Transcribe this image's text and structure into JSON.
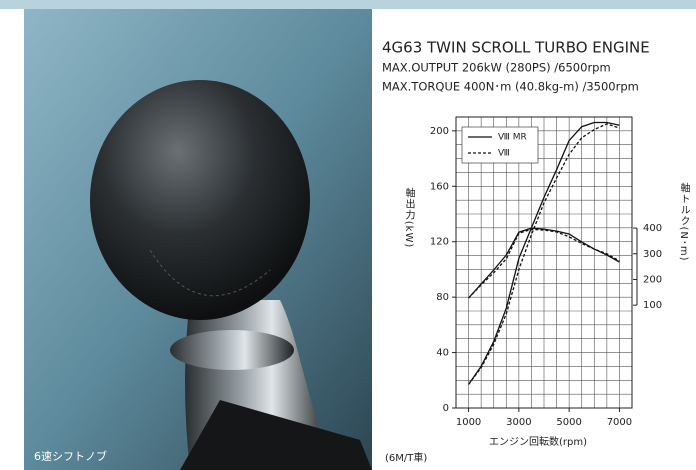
{
  "caption": "6速シフトノブ",
  "chart_data": {
    "type": "line",
    "title": "4G63 TWIN SCROLL TURBO ENGINE",
    "subtitle": [
      "MAX.OUTPUT 206kW (280PS) /6500rpm",
      "MAX.TORQUE 400N･m (40.8kg-m) /3500rpm"
    ],
    "x_label": "エンジン回転数(rpm)",
    "y_label": "軸出力(kW)",
    "y2_label": "軸トルク(N･m)",
    "note": "(6M/T車)",
    "x": [
      1000,
      1500,
      2000,
      2500,
      3000,
      3500,
      4000,
      4500,
      5000,
      5500,
      6000,
      6500,
      7000
    ],
    "series": [
      {
        "name": "Ⅷ MR",
        "color": "#111111",
        "dash": false,
        "values": [
          17,
          30,
          48,
          72,
          108,
          130,
          152,
          172,
          193,
          203,
          206,
          206,
          204
        ]
      },
      {
        "name": "Ⅷ",
        "color": "#111111",
        "dash": true,
        "values": [
          17,
          29,
          46,
          68,
          100,
          125,
          148,
          166,
          183,
          195,
          201,
          205,
          202
        ]
      },
      {
        "color": "#111111",
        "dash": false,
        "axis": "y2",
        "values": [
          128,
          182,
          237,
          295,
          384,
          400,
          396,
          388,
          377,
          346,
          318,
          295,
          268
        ]
      },
      {
        "color": "#111111",
        "dash": true,
        "axis": "y2",
        "values": [
          128,
          179,
          226,
          280,
          380,
          395,
          392,
          385,
          366,
          340,
          318,
          300,
          272
        ]
      }
    ],
    "xlim": [
      500,
      7500
    ],
    "xticks": [
      1000,
      3000,
      5000,
      7000
    ],
    "ylim": [
      0,
      210
    ],
    "yticks": [
      0,
      40,
      80,
      120,
      160,
      200
    ],
    "y2lim": [
      -300,
      832
    ],
    "y2ticks": [
      100,
      200,
      300,
      400
    ],
    "grid": true,
    "grid_xticks": [
      500,
      1000,
      1500,
      2000,
      2500,
      3000,
      3500,
      4000,
      4500,
      5000,
      5500,
      6000,
      6500,
      7000,
      7500
    ],
    "grid_yticks": [
      0,
      10,
      20,
      30,
      40,
      50,
      60,
      70,
      80,
      90,
      100,
      110,
      120,
      130,
      140,
      150,
      160,
      170,
      180,
      190,
      200,
      210
    ],
    "legend": "upper left"
  }
}
